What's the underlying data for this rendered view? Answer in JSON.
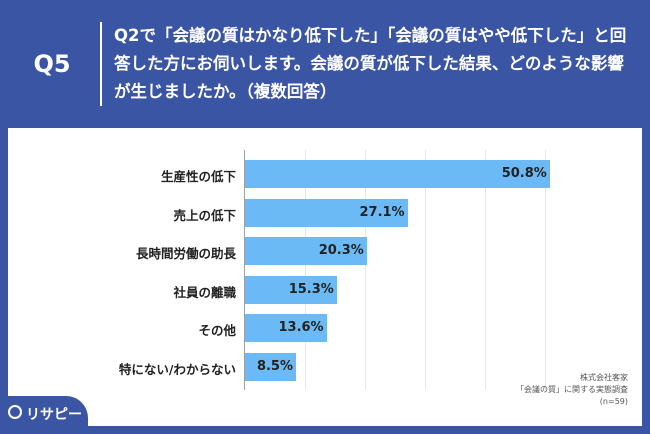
{
  "header": {
    "qnum": "Q5",
    "question": "Q2で「会議の質はかなり低下した」「会議の質はやや低下した」と回答した方にお伺いします。会議の質が低下した結果、どのような影響が生じましたか。（複数回答）"
  },
  "chart_data": {
    "type": "bar",
    "orientation": "horizontal",
    "categories": [
      "生産性の低下",
      "売上の低下",
      "長時間労働の助長",
      "社員の離職",
      "その他",
      "特にない/わからない"
    ],
    "values": [
      50.8,
      27.1,
      20.3,
      15.3,
      13.6,
      8.5
    ],
    "value_labels": [
      "50.8%",
      "27.1%",
      "20.3%",
      "15.3%",
      "13.6%",
      "8.5%"
    ],
    "xlim": [
      0,
      60
    ],
    "bar_color": "#6cbaf5",
    "grid": true
  },
  "source": {
    "line1": "株式会社客家",
    "line2": "「会議の質」に関する実態調査",
    "line3": "(n=59)"
  },
  "logo": {
    "text": "リサピー",
    "icon": "lightbulb-icon"
  }
}
